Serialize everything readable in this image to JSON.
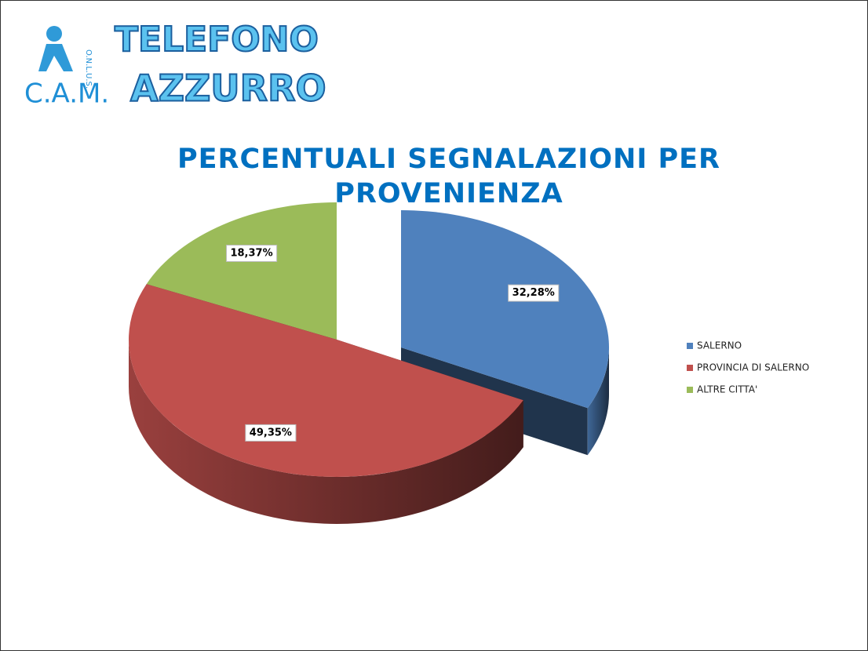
{
  "logo": {
    "org": "C.A.M.",
    "legal": "O.N.L.U.S.",
    "line1": "TELEFONO",
    "line2": "AZZURRO"
  },
  "chart_data": {
    "type": "pie3d",
    "title": "PERCENTUALI SEGNALAZIONI PER PROVENIENZA",
    "series": [
      {
        "name": "SALERNO",
        "color": "#4f81bd",
        "values": [
          32.28
        ],
        "value_labels": [
          "32,28%"
        ]
      },
      {
        "name": "PROVINCIA DI SALERNO",
        "color": "#c0504d",
        "values": [
          49.35
        ],
        "value_labels": [
          "49,35%"
        ]
      },
      {
        "name": "ALTRE CITTA'",
        "color": "#9bbb59",
        "values": [
          18.37
        ],
        "value_labels": [
          "18,37%"
        ]
      }
    ],
    "legend": "right"
  }
}
